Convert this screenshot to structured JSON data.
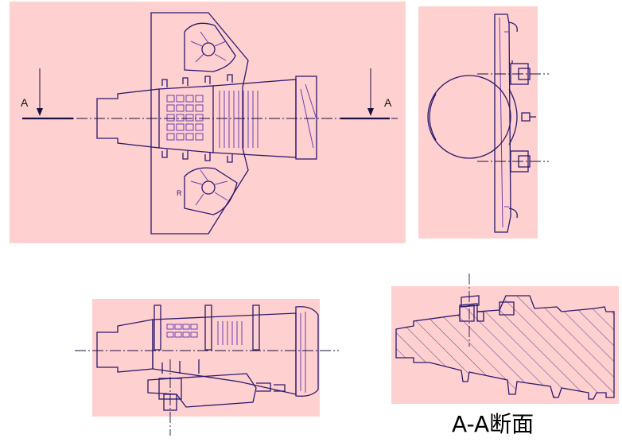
{
  "views": {
    "top": {
      "section_marker_left": "A",
      "section_marker_right": "A"
    },
    "section": {
      "caption": "A-A断面"
    }
  },
  "colors": {
    "panel_fill": "#ffd0d0",
    "outline": "#2a1a6e",
    "accent_line": "#6a3fb0"
  }
}
